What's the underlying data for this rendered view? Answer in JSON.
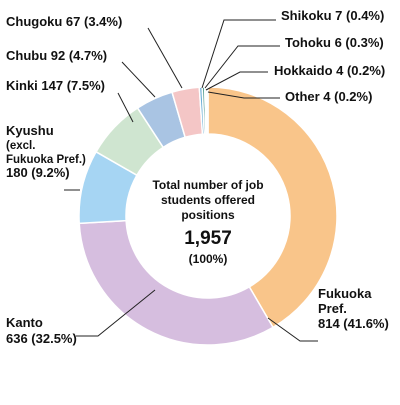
{
  "chart_data": {
    "type": "pie",
    "donut": true,
    "center": {
      "text": "Total number of job students offered positions",
      "lines": [
        "Total number of job",
        "students offered",
        "positions"
      ],
      "total": "1,957",
      "percent": "(100%)"
    },
    "slices": [
      {
        "name": "Fukuoka Pref.",
        "value": 814,
        "percent": "41.6%",
        "color": "#F9C58A",
        "label_lines": [
          "Fukuoka",
          "Pref.",
          "814 (41.6%)"
        ]
      },
      {
        "name": "Kanto",
        "value": 636,
        "percent": "32.5%",
        "color": "#D6BEDF",
        "label_lines": [
          "Kanto",
          "636 (32.5%)"
        ]
      },
      {
        "name": "Kyushu (excl. Fukuoka Pref.)",
        "value": 180,
        "percent": "9.2%",
        "color": "#A6D5F3",
        "label_lines": [
          "Kyushu",
          "(excl.",
          "Fukuoka Pref.)",
          "180 (9.2%)"
        ]
      },
      {
        "name": "Kinki",
        "value": 147,
        "percent": "7.5%",
        "color": "#CFE5D0",
        "label_lines": [
          "Kinki  147 (7.5%)"
        ]
      },
      {
        "name": "Chubu",
        "value": 92,
        "percent": "4.7%",
        "color": "#A9C4E3",
        "label_lines": [
          "Chubu  92 (4.7%)"
        ]
      },
      {
        "name": "Chugoku",
        "value": 67,
        "percent": "3.4%",
        "color": "#F4C6C6",
        "label_lines": [
          "Chugoku  67 (3.4%)"
        ]
      },
      {
        "name": "Shikoku",
        "value": 7,
        "percent": "0.4%",
        "color": "#6FAFD6",
        "label_lines": [
          "Shikoku  7 (0.4%)"
        ]
      },
      {
        "name": "Tohoku",
        "value": 6,
        "percent": "0.3%",
        "color": "#4E9A8E",
        "label_lines": [
          "Tohoku 6 (0.3%)"
        ]
      },
      {
        "name": "Hokkaido",
        "value": 4,
        "percent": "0.2%",
        "color": "#9FD6D2",
        "label_lines": [
          "Hokkaido 4 (0.2%)"
        ]
      },
      {
        "name": "Other",
        "value": 4,
        "percent": "0.2%",
        "color": "#BFE3E0",
        "label_lines": [
          "Other  4 (0.2%)"
        ]
      }
    ]
  }
}
